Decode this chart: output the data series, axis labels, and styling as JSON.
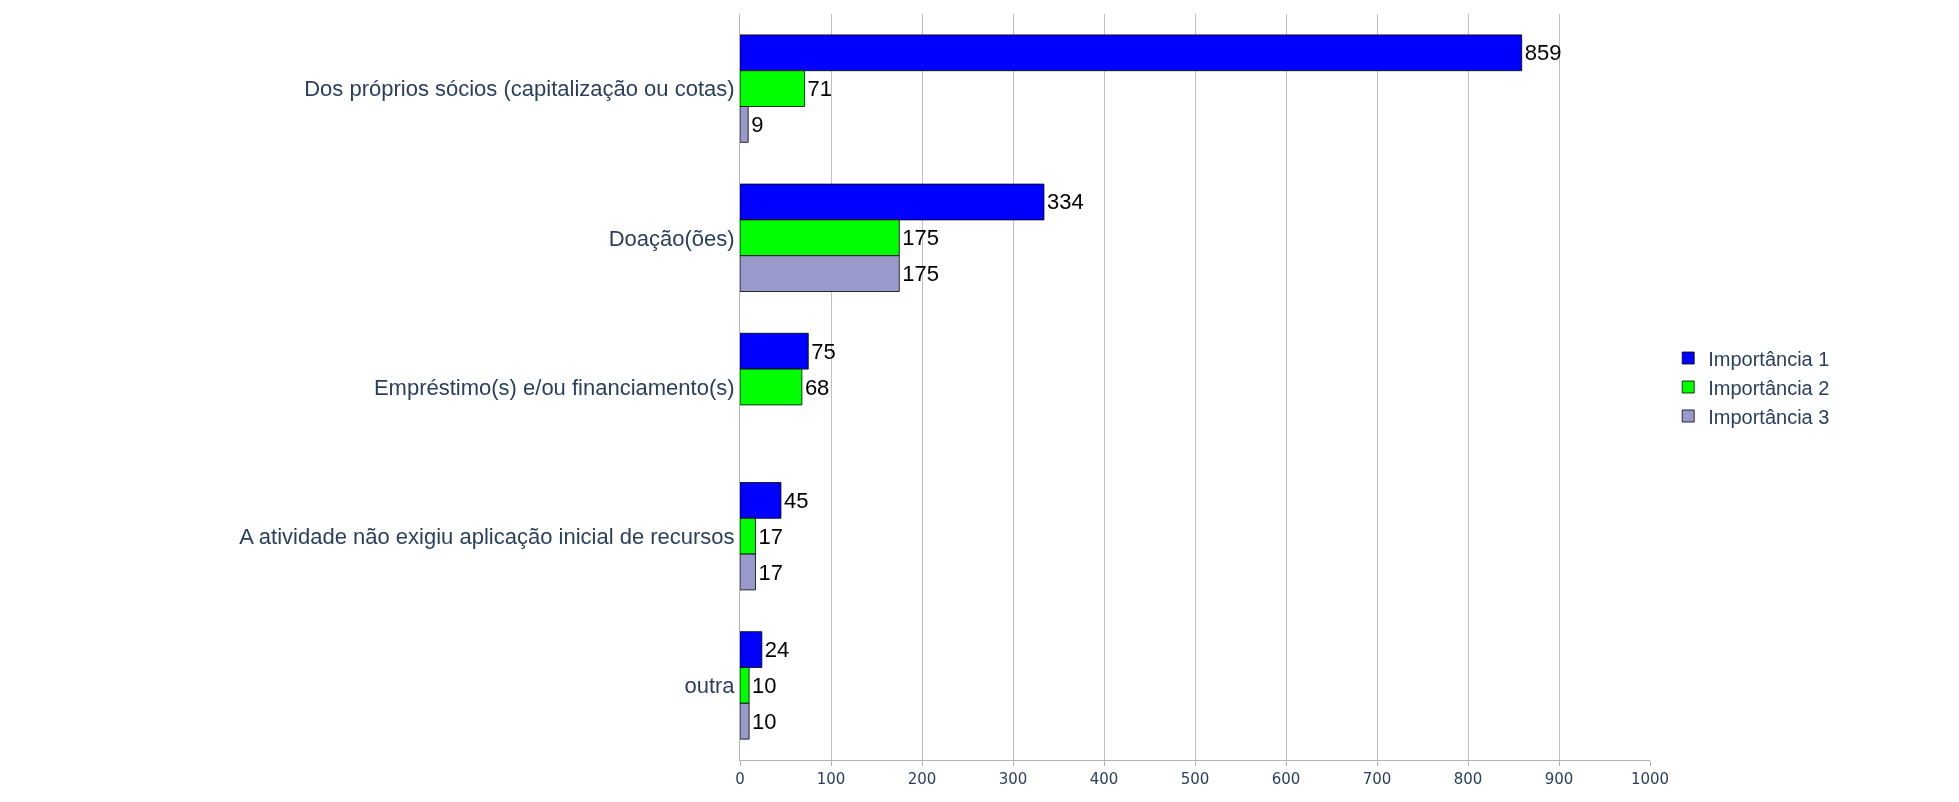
{
  "chart_data": {
    "type": "bar",
    "orientation": "horizontal",
    "categories": [
      "Dos próprios sócios (capitalização ou cotas)",
      "Doação(ões)",
      "Empréstimo(s) e/ou financiamento(s)",
      "A atividade não exigiu aplicação inicial de recursos",
      "outra"
    ],
    "series": [
      {
        "name": "Importância 1",
        "color": "#0000ff",
        "values": [
          859,
          334,
          75,
          45,
          24
        ]
      },
      {
        "name": "Importância 2",
        "color": "#00ff00",
        "values": [
          71,
          175,
          68,
          17,
          10
        ]
      },
      {
        "name": "Importância 3",
        "color": "#9999cc",
        "values": [
          9,
          175,
          null,
          17,
          10
        ]
      }
    ],
    "xlim": [
      0,
      1000
    ],
    "xticks": [
      0,
      100,
      200,
      300,
      400,
      500,
      600,
      700,
      800,
      900,
      1000
    ],
    "grid": "x",
    "legend": "right",
    "data_labels": true
  }
}
